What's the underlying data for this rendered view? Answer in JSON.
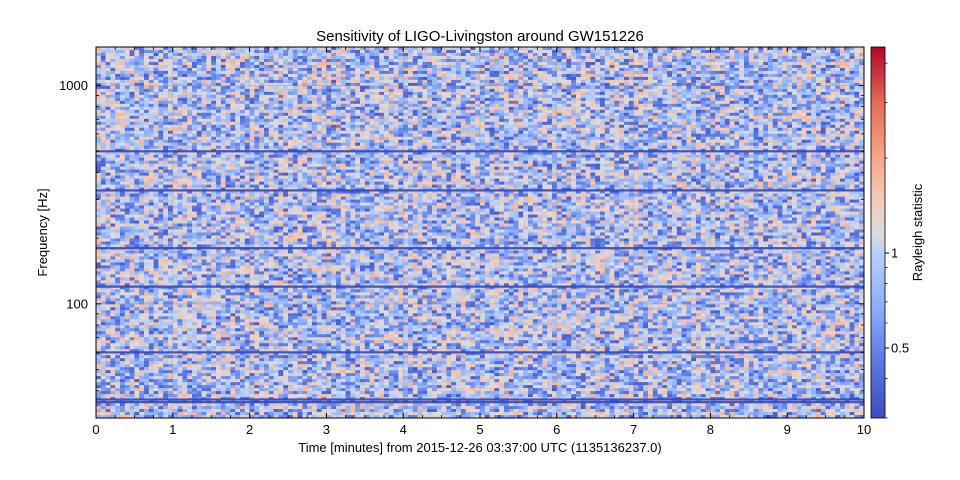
{
  "chart_data": {
    "type": "heatmap",
    "title": "Sensitivity of LIGO-Livingston around GW151226",
    "xlabel": "Time [minutes] from 2015-12-26 03:37:00 UTC (1135136237.0)",
    "ylabel": "Frequency [Hz]",
    "colorbar_label": "Rayleigh statistic",
    "colormap": "coolwarm",
    "x_range": [
      0,
      10
    ],
    "x_ticks": [
      0,
      1,
      2,
      3,
      4,
      5,
      6,
      7,
      8,
      9,
      10
    ],
    "x_tick_labels": [
      "0",
      "1",
      "2",
      "3",
      "4",
      "5",
      "6",
      "7",
      "8",
      "9",
      "10"
    ],
    "y_scale": "log",
    "y_range": [
      30,
      1500
    ],
    "y_ticks": [
      100,
      1000
    ],
    "y_tick_labels": [
      "100",
      "1000"
    ],
    "colorbar_scale": "log",
    "colorbar_range": [
      0.3,
      4.5
    ],
    "colorbar_ticks": [
      0.5,
      1
    ],
    "colorbar_tick_labels": [
      "0.5",
      "1"
    ],
    "typical_value_range": [
      0.35,
      1.8
    ],
    "low_value_lines_hz": [
      35.5,
      36.5,
      60,
      120,
      180,
      331,
      500
    ],
    "grid": true
  }
}
